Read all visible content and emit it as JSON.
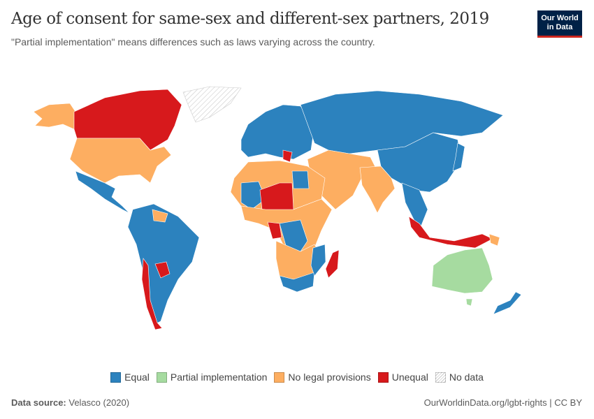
{
  "header": {
    "title": "Age of consent for same-sex and different-sex partners, 2019",
    "subtitle": "\"Partial implementation\" means differences such as laws varying across the country.",
    "logo_line1": "Our World",
    "logo_line2": "in Data"
  },
  "legend": [
    {
      "label": "Equal",
      "color": "#2c82be"
    },
    {
      "label": "Partial implementation",
      "color": "#a6dba0"
    },
    {
      "label": "No legal provisions",
      "color": "#fdae61"
    },
    {
      "label": "Unequal",
      "color": "#d7191c"
    },
    {
      "label": "No data",
      "color": "hatched"
    }
  ],
  "footer": {
    "source_label": "Data source:",
    "source": "Velasco (2020)",
    "url": "OurWorldinData.org/lgbt-rights | CC BY"
  }
}
